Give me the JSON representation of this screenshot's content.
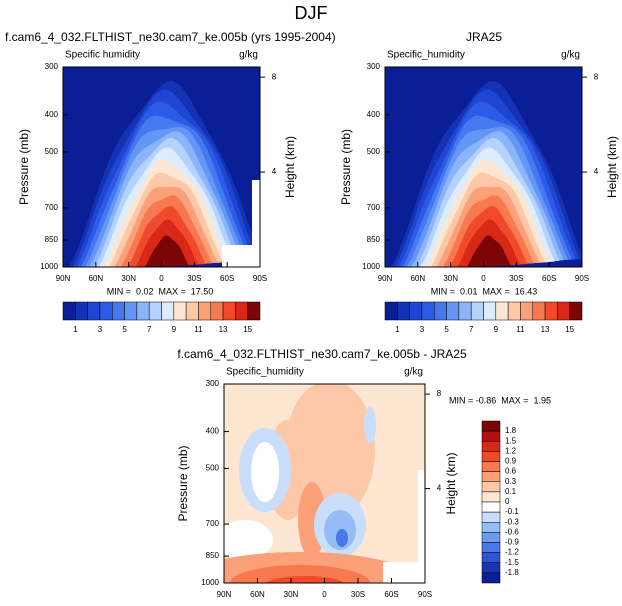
{
  "title": "DJF",
  "chart_data": [
    {
      "type": "contour",
      "title": "f.cam6_4_032.FLTHIST_ne30.cam7_ke.005b (yrs 1995-2004)",
      "subtitle_left": "Specific humidity",
      "subtitle_right": "g/kg",
      "ylabel": "Pressure (mb)",
      "y2label": "Height (km)",
      "xlim": [
        90,
        -90
      ],
      "xticks": [
        {
          "value": 90,
          "label": "90N"
        },
        {
          "value": 60,
          "label": "60N"
        },
        {
          "value": 30,
          "label": "30N"
        },
        0,
        {
          "value": -30,
          "label": "30S"
        },
        {
          "value": -60,
          "label": "60S"
        },
        {
          "value": -90,
          "label": "90S"
        }
      ],
      "ylim": [
        1000,
        300
      ],
      "yticks": [
        300,
        400,
        500,
        700,
        850,
        1000
      ],
      "log_y": true,
      "y2ticks": [
        4,
        8
      ],
      "stats_text": "MIN =  0.02  MAX =  17.50",
      "colorbar": {
        "orientation": "horizontal",
        "ticks": [
          1,
          3,
          5,
          7,
          9,
          11,
          13,
          15
        ],
        "colors": [
          "#0a1e96",
          "#1432b4",
          "#1e46d2",
          "#2d5ae6",
          "#4678f0",
          "#6496f5",
          "#8cb4fa",
          "#b4d2fc",
          "#dceefe",
          "#fde6d2",
          "#fcc8a8",
          "#fca07a",
          "#f87850",
          "#f04a2a",
          "#d82818",
          "#7a0606"
        ]
      }
    },
    {
      "type": "contour",
      "title": "JRA25",
      "subtitle_left": "Specific_humidity",
      "subtitle_right": "g/kg",
      "ylabel": "Pressure (mb)",
      "y2label": "Height (km)",
      "xlim": [
        90,
        -90
      ],
      "xticks": [
        {
          "value": 90,
          "label": "90N"
        },
        {
          "value": 60,
          "label": "60N"
        },
        {
          "value": 30,
          "label": "30N"
        },
        0,
        {
          "value": -30,
          "label": "30S"
        },
        {
          "value": -60,
          "label": "60S"
        },
        {
          "value": -90,
          "label": "90S"
        }
      ],
      "ylim": [
        1000,
        300
      ],
      "yticks": [
        300,
        400,
        500,
        700,
        850,
        1000
      ],
      "log_y": true,
      "y2ticks": [
        4,
        8
      ],
      "stats_text": "MIN =  0.01  MAX =  16.43",
      "colorbar": {
        "orientation": "horizontal",
        "ticks": [
          1,
          3,
          5,
          7,
          9,
          11,
          13,
          15
        ],
        "colors": [
          "#0a1e96",
          "#1432b4",
          "#1e46d2",
          "#2d5ae6",
          "#4678f0",
          "#6496f5",
          "#8cb4fa",
          "#b4d2fc",
          "#dceefe",
          "#fde6d2",
          "#fcc8a8",
          "#fca07a",
          "#f87850",
          "#f04a2a",
          "#d82818",
          "#7a0606"
        ]
      }
    },
    {
      "type": "contour",
      "title": "f.cam6_4_032.FLTHIST_ne30.cam7_ke.005b - JRA25",
      "subtitle_left": "Specific_humidity",
      "subtitle_right": "g/kg",
      "ylabel": "Pressure (mb)",
      "y2label": "Height (km)",
      "xlim": [
        90,
        -90
      ],
      "xticks": [
        {
          "value": 90,
          "label": "90N"
        },
        {
          "value": 60,
          "label": "60N"
        },
        {
          "value": 30,
          "label": "30N"
        },
        0,
        {
          "value": -30,
          "label": "30S"
        },
        {
          "value": -60,
          "label": "60S"
        },
        {
          "value": -90,
          "label": "90S"
        }
      ],
      "ylim": [
        1000,
        300
      ],
      "yticks": [
        300,
        400,
        500,
        700,
        850,
        1000
      ],
      "log_y": true,
      "y2ticks": [
        4,
        8
      ],
      "stats_text": "MIN = -0.86  MAX =  1.95",
      "colorbar": {
        "orientation": "vertical",
        "ticks": [
          1.8,
          1.5,
          1.2,
          0.9,
          0.6,
          0.3,
          0.1,
          0,
          -0.1,
          -0.3,
          -0.6,
          -0.9,
          -1.2,
          -1.5,
          -1.8
        ],
        "colors": [
          "#7a0606",
          "#b01010",
          "#d82818",
          "#f04a2a",
          "#f87850",
          "#fca07a",
          "#fcc8a8",
          "#fde6d2",
          "#ffffff",
          "#c8defa",
          "#96bcf5",
          "#6e9aef",
          "#4a78e6",
          "#2d55d4",
          "#1a34b0",
          "#0a1e96"
        ]
      }
    }
  ]
}
